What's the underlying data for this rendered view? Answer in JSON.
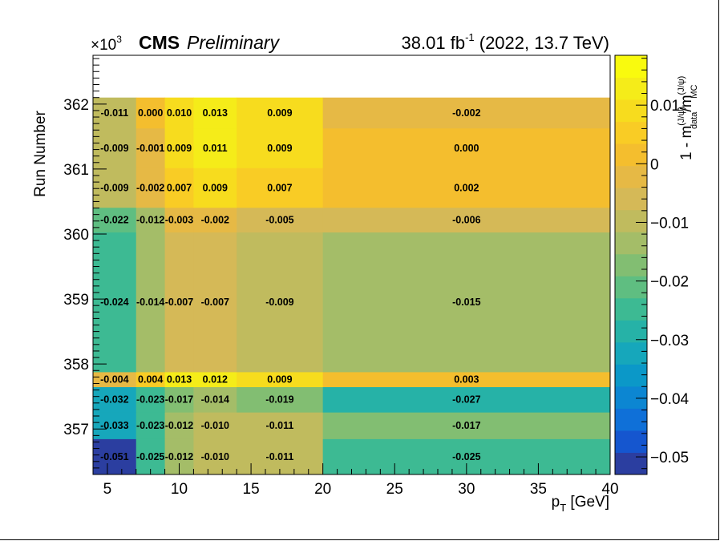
{
  "header": {
    "exponent": "×10",
    "exponent_power": "3",
    "experiment": "CMS",
    "status": "Preliminary",
    "lumi_value": "38.01 fb",
    "lumi_power": "-1",
    "lumi_context": " (2022, 13.7 TeV)"
  },
  "chart_data": {
    "type": "heatmap",
    "xlabel": "p",
    "xlabel_sub": "T",
    "xlabel_unit": " [GeV]",
    "ylabel": "Run Number",
    "zlabel": "1 - m",
    "zlabel_num_sup": "(J/ψ)",
    "zlabel_num_sub": "data",
    "zlabel_den_sup": "(J/ψ)",
    "zlabel_den_sub": "MC",
    "xlim": [
      4,
      40
    ],
    "ylim": [
      356.3,
      362.75
    ],
    "zlim": [
      -0.053,
      0.0185
    ],
    "x_ticks": [
      5,
      10,
      15,
      20,
      25,
      30,
      35,
      40
    ],
    "y_ticks": [
      357,
      358,
      359,
      360,
      361,
      362
    ],
    "z_ticks": [
      {
        "v": 0.01,
        "label": "0.01"
      },
      {
        "v": 0,
        "label": "0"
      },
      {
        "v": -0.01,
        "label": "−0.01"
      },
      {
        "v": -0.02,
        "label": "−0.02"
      },
      {
        "v": -0.03,
        "label": "−0.03"
      },
      {
        "v": -0.04,
        "label": "−0.04"
      },
      {
        "v": -0.05,
        "label": "−0.05"
      }
    ],
    "x_bins": [
      4,
      7,
      9,
      11,
      14,
      20,
      40
    ],
    "y_bins": [
      356.3,
      356.85,
      357.26,
      357.65,
      357.88,
      360.03,
      360.41,
      361.02,
      361.63,
      362.1,
      362.75
    ],
    "rows": [
      [
        -0.051,
        -0.025,
        -0.012,
        -0.01,
        -0.011,
        -0.025
      ],
      [
        -0.033,
        -0.023,
        -0.012,
        -0.01,
        -0.011,
        -0.017
      ],
      [
        -0.032,
        -0.023,
        -0.017,
        -0.014,
        -0.019,
        -0.027
      ],
      [
        -0.004,
        0.004,
        0.013,
        0.012,
        0.009,
        0.003
      ],
      [
        -0.024,
        -0.014,
        -0.007,
        -0.007,
        -0.009,
        -0.015
      ],
      [
        -0.022,
        -0.012,
        -0.003,
        -0.002,
        -0.005,
        -0.006
      ],
      [
        -0.009,
        -0.002,
        0.007,
        0.009,
        0.007,
        0.002
      ],
      [
        -0.009,
        -0.001,
        0.009,
        0.011,
        0.009,
        0.0
      ],
      [
        -0.011,
        0.0,
        0.01,
        0.013,
        0.009,
        -0.002
      ]
    ],
    "labels": [
      [
        "-0.051",
        "-0.025",
        "-0.012",
        "-0.010",
        "-0.011",
        "-0.025"
      ],
      [
        "-0.033",
        "-0.023",
        "-0.012",
        "-0.010",
        "-0.011",
        "-0.017"
      ],
      [
        "-0.032",
        "-0.023",
        "-0.017",
        "-0.014",
        "-0.019",
        "-0.027"
      ],
      [
        "-0.004",
        "0.004",
        "0.013",
        "0.012",
        "0.009",
        "0.003"
      ],
      [
        "-0.024",
        "-0.014",
        "-0.007",
        "-0.007",
        "-0.009",
        "-0.015"
      ],
      [
        "-0.022",
        "-0.012",
        "-0.003",
        "-0.002",
        "-0.005",
        "-0.006"
      ],
      [
        "-0.009",
        "-0.002",
        "0.007",
        "0.009",
        "0.007",
        "0.002"
      ],
      [
        "-0.009",
        "-0.001",
        "0.009",
        "0.011",
        "0.009",
        "0.000"
      ],
      [
        "-0.011",
        "0.000",
        "0.010",
        "0.013",
        "0.009",
        "-0.002"
      ]
    ],
    "palette": [
      "#2b3ea0",
      "#1556cf",
      "#0f70d8",
      "#0c86d2",
      "#0b98c8",
      "#16a7bb",
      "#26b2a7",
      "#3dba93",
      "#5fbe81",
      "#82be72",
      "#a4bd68",
      "#c0bb5e",
      "#d5b957",
      "#e6b945",
      "#f4be2e",
      "#f9cc25",
      "#f7dc1e",
      "#f5ec19",
      "#f9fa0e"
    ],
    "grid": false,
    "legend": "color bar on right"
  }
}
